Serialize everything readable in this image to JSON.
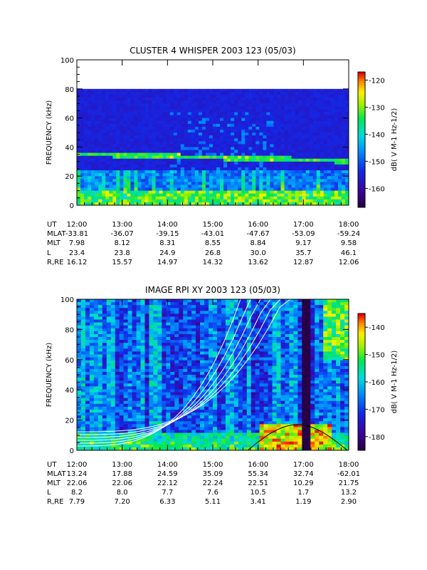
{
  "chart_data": [
    {
      "type": "heatmap",
      "title": "CLUSTER 4 WHISPER 2003 123 (05/03)",
      "ylabel": "FREQUENCY (kHz)",
      "ylim": [
        0,
        100
      ],
      "yticks": [
        "0",
        "20",
        "40",
        "60",
        "80",
        "100"
      ],
      "data_ceiling_khz": 80,
      "x_ticks": [
        "12:00",
        "13:00",
        "14:00",
        "15:00",
        "16:00",
        "17:00",
        "18:00"
      ],
      "colorbar": {
        "label": "dB( V M-1 Hz-1/2)",
        "ticks": [
          "-120",
          "-130",
          "-140",
          "-150",
          "-160"
        ],
        "range": [
          -167,
          -117
        ]
      },
      "ephemeris": [
        {
          "label": "UT",
          "values": [
            "12:00",
            "13:00",
            "14:00",
            "15:00",
            "16:00",
            "17:00",
            "18:00"
          ]
        },
        {
          "label": "MLAT",
          "values": [
            "-33.81",
            "-36.07",
            "-39.15",
            "-43.01",
            "-47.67",
            "-53.09",
            "-59.24"
          ]
        },
        {
          "label": "MLT",
          "values": [
            "7.98",
            "8.12",
            "8.31",
            "8.55",
            "8.84",
            "9.17",
            "9.58"
          ]
        },
        {
          "label": "L",
          "values": [
            "23.4",
            "23.8",
            "24.9",
            "26.8",
            "30.0",
            "35.7",
            "46.1"
          ]
        },
        {
          "label": "R,RE",
          "values": [
            "16.12",
            "15.57",
            "14.97",
            "14.32",
            "13.62",
            "12.87",
            "12.06"
          ]
        }
      ]
    },
    {
      "type": "heatmap",
      "title": "IMAGE RPI XY 2003 123 (05/03)",
      "ylabel": "FREQUENCY (kHz)",
      "ylim": [
        0,
        100
      ],
      "yticks": [
        "0",
        "20",
        "40",
        "60",
        "80",
        "100"
      ],
      "x_ticks": [
        "12:00",
        "13:00",
        "14:00",
        "15:00",
        "16:00",
        "17:00",
        "18:00"
      ],
      "colorbar": {
        "label": "dB( V M-1 Hz-1/2)",
        "ticks": [
          "-140",
          "-150",
          "-160",
          "-170",
          "-180"
        ],
        "range": [
          -185,
          -135
        ]
      },
      "ephemeris": [
        {
          "label": "UT",
          "values": [
            "12:00",
            "13:00",
            "14:00",
            "15:00",
            "16:00",
            "17:00",
            "18:00"
          ]
        },
        {
          "label": "MLAT",
          "values": [
            "13.24",
            "17.88",
            "24.59",
            "35.09",
            "55.34",
            "32.74",
            "-62.01"
          ]
        },
        {
          "label": "MLT",
          "values": [
            "22.06",
            "22.06",
            "22.12",
            "22.24",
            "22.51",
            "10.29",
            "21.75"
          ]
        },
        {
          "label": "L",
          "values": [
            "8.2",
            "8.0",
            "7.7",
            "7.6",
            "10.5",
            "1.7",
            "13.2"
          ]
        },
        {
          "label": "R,RE",
          "values": [
            "7.79",
            "7.20",
            "6.33",
            "5.11",
            "3.41",
            "1.19",
            "2.90"
          ]
        }
      ]
    }
  ]
}
